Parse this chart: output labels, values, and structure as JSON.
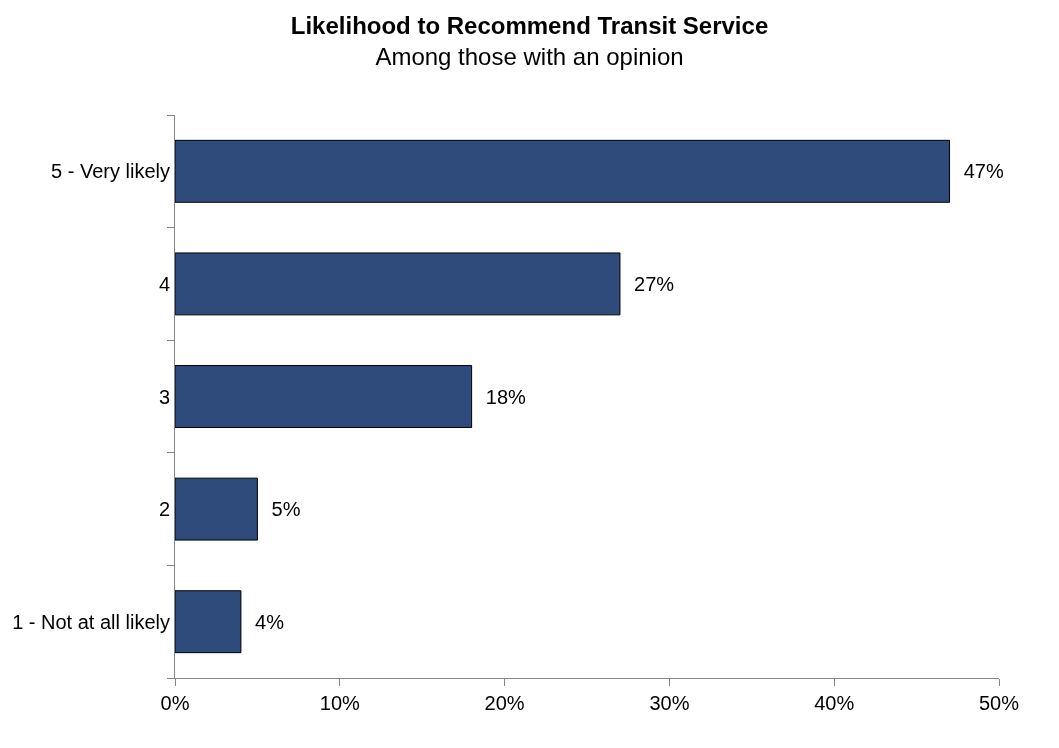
{
  "chart_data": {
    "type": "bar",
    "orientation": "horizontal",
    "title": "Likelihood to Recommend Transit Service",
    "subtitle": "Among those with an opinion",
    "categories": [
      "5 - Very likely",
      "4",
      "3",
      "2",
      "1 - Not at all likely"
    ],
    "values": [
      47,
      27,
      18,
      5,
      4
    ],
    "value_labels": [
      "47%",
      "27%",
      "18%",
      "5%",
      "4%"
    ],
    "color": "#2f4b7c",
    "xlim": [
      0,
      50
    ],
    "xticks": [
      {
        "value": 0,
        "label": "0%"
      },
      {
        "value": 10,
        "label": "10%"
      },
      {
        "value": 20,
        "label": "20%"
      },
      {
        "value": 30,
        "label": "30%"
      },
      {
        "value": 40,
        "label": "40%"
      },
      {
        "value": 50,
        "label": "50%"
      }
    ],
    "legend": false
  }
}
